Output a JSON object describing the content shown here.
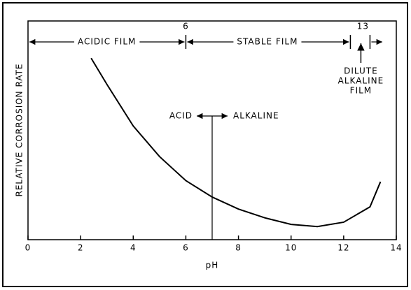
{
  "chart_data": {
    "type": "line",
    "x_label": "pH",
    "y_label": "RELATIVE CORROSION RATE",
    "x": [
      2.4,
      3,
      4,
      5,
      6,
      7,
      8,
      9,
      10,
      11,
      12,
      13,
      13.4
    ],
    "series": [
      {
        "color": "#000000",
        "values": [
          83,
          71,
          52,
          38,
          27,
          19.5,
          14,
          10,
          7,
          6,
          8,
          15,
          26.5
        ]
      }
    ],
    "xlim": [
      0,
      14
    ],
    "xticks": [
      0,
      2,
      4,
      6,
      8,
      10,
      12,
      14
    ],
    "ylim": [
      0,
      100
    ],
    "zone_boundaries": [
      6,
      13
    ],
    "zones": [
      "ACIDIC FILM",
      "STABLE FILM",
      [
        "DILUTE",
        "ALKALINE",
        "FILM"
      ]
    ],
    "divider": {
      "x": 7,
      "left_label": "ACID",
      "right_label": "ALKALINE"
    }
  }
}
